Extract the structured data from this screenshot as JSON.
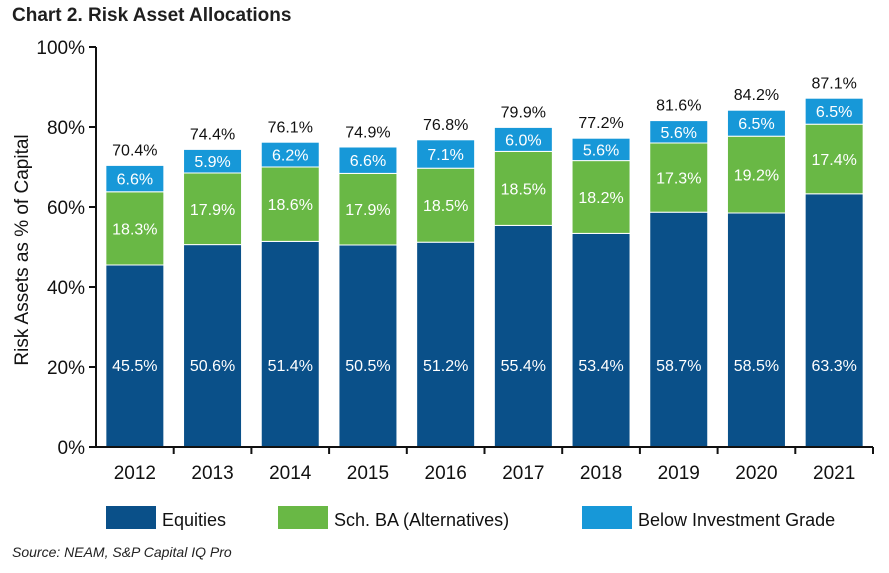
{
  "title": "Chart 2. Risk Asset Allocations",
  "source": "Source: NEAM, S&P Capital IQ Pro",
  "colors": {
    "equities": "#0a5089",
    "alternatives": "#69b845",
    "below_ig": "#1798d8",
    "axis": "#111111"
  },
  "chart_data": {
    "type": "bar",
    "stacked": true,
    "title": "Chart 2. Risk Asset Allocations",
    "xlabel": "",
    "ylabel": "Risk Assets as % of Capital",
    "ylim": [
      0,
      100
    ],
    "yticks": [
      "0%",
      "20%",
      "40%",
      "60%",
      "80%",
      "100%"
    ],
    "ytick_values": [
      0,
      20,
      40,
      60,
      80,
      100
    ],
    "categories": [
      "2012",
      "2013",
      "2014",
      "2015",
      "2016",
      "2017",
      "2018",
      "2019",
      "2020",
      "2021"
    ],
    "series": [
      {
        "name": "Equities",
        "values": [
          45.5,
          50.6,
          51.4,
          50.5,
          51.2,
          55.4,
          53.4,
          58.7,
          58.5,
          63.3
        ],
        "labels": [
          "45.5%",
          "50.6%",
          "51.4%",
          "50.5%",
          "51.2%",
          "55.4%",
          "53.4%",
          "58.7%",
          "58.5%",
          "63.3%"
        ]
      },
      {
        "name": "Sch. BA (Alternatives)",
        "values": [
          18.3,
          17.9,
          18.6,
          17.9,
          18.5,
          18.5,
          18.2,
          17.3,
          19.2,
          17.4
        ],
        "labels": [
          "18.3%",
          "17.9%",
          "18.6%",
          "17.9%",
          "18.5%",
          "18.5%",
          "18.2%",
          "17.3%",
          "19.2%",
          "17.4%"
        ]
      },
      {
        "name": "Below Investment Grade",
        "values": [
          6.6,
          5.9,
          6.2,
          6.6,
          7.1,
          6.0,
          5.6,
          5.6,
          6.5,
          6.5
        ],
        "labels": [
          "6.6%",
          "5.9%",
          "6.2%",
          "6.6%",
          "7.1%",
          "6.0%",
          "5.6%",
          "5.6%",
          "6.5%",
          "6.5%"
        ]
      }
    ],
    "totals": [
      70.4,
      74.4,
      76.1,
      74.9,
      76.8,
      79.9,
      77.2,
      81.6,
      84.2,
      87.1
    ],
    "total_labels": [
      "70.4%",
      "74.4%",
      "76.1%",
      "74.9%",
      "76.8%",
      "79.9%",
      "77.2%",
      "81.6%",
      "84.2%",
      "87.1%"
    ],
    "legend": [
      "Equities",
      "Sch. BA (Alternatives)",
      "Below Investment Grade"
    ],
    "legend_position": "bottom",
    "grid": false
  }
}
